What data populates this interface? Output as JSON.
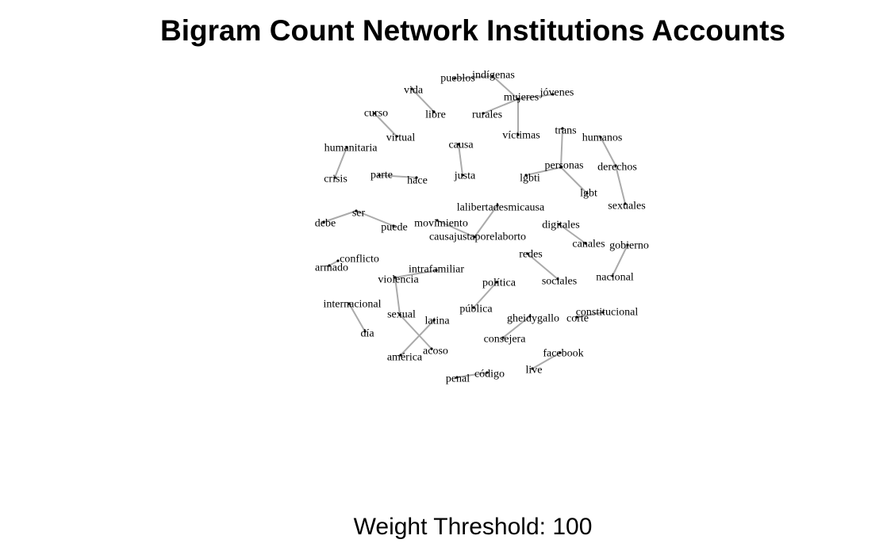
{
  "title": "Bigram Count Network Institutions Accounts",
  "subtitle": "Weight Threshold: 100",
  "colors": {
    "edge": "#aaaaaa",
    "node": "#000000",
    "text": "#000000"
  },
  "nodes": [
    "pueblos",
    "indígenas",
    "mujeres",
    "jóvenes",
    "rurales",
    "víctimas",
    "vida",
    "libre",
    "curso",
    "virtual",
    "humanitaria",
    "crisis",
    "causa",
    "justa",
    "parte",
    "hace",
    "trans",
    "humanos",
    "personas",
    "derechos",
    "lgbti",
    "lgbt",
    "sexuales",
    "lalibertadesmicausa",
    "causajustaporelaborto",
    "movimiento",
    "ser",
    "debe",
    "puede",
    "digitales",
    "canales",
    "gobierno",
    "nacional",
    "conflicto",
    "armado",
    "intrafamiliar",
    "violencia",
    "redes",
    "sociales",
    "política",
    "pública",
    "internacional",
    "día",
    "sexual",
    "latina",
    "acoso",
    "américa",
    "gheidygallo",
    "consejera",
    "constitucional",
    "corte",
    "facebook",
    "live",
    "penal",
    "código"
  ],
  "edges": [
    [
      "pueblos",
      "indígenas"
    ],
    [
      "indígenas",
      "mujeres"
    ],
    [
      "mujeres",
      "jóvenes"
    ],
    [
      "rurales",
      "mujeres"
    ],
    [
      "mujeres",
      "víctimas"
    ],
    [
      "vida",
      "libre"
    ],
    [
      "curso",
      "virtual"
    ],
    [
      "humanitaria",
      "crisis"
    ],
    [
      "causa",
      "justa"
    ],
    [
      "parte",
      "hace"
    ],
    [
      "trans",
      "personas"
    ],
    [
      "personas",
      "lgbti"
    ],
    [
      "personas",
      "lgbt"
    ],
    [
      "derechos",
      "humanos"
    ],
    [
      "derechos",
      "sexuales"
    ],
    [
      "lalibertadesmicausa",
      "causajustaporelaborto"
    ],
    [
      "movimiento",
      "causajustaporelaborto"
    ],
    [
      "ser",
      "debe"
    ],
    [
      "ser",
      "puede"
    ],
    [
      "digitales",
      "canales"
    ],
    [
      "gobierno",
      "nacional"
    ],
    [
      "conflicto",
      "armado"
    ],
    [
      "violencia",
      "intrafamiliar"
    ],
    [
      "violencia",
      "sexual"
    ],
    [
      "redes",
      "sociales"
    ],
    [
      "política",
      "pública"
    ],
    [
      "internacional",
      "día"
    ],
    [
      "sexual",
      "acoso"
    ],
    [
      "américa",
      "latina"
    ],
    [
      "gheidygallo",
      "consejera"
    ],
    [
      "corte",
      "constitucional"
    ],
    [
      "facebook",
      "live"
    ],
    [
      "código",
      "penal"
    ]
  ]
}
